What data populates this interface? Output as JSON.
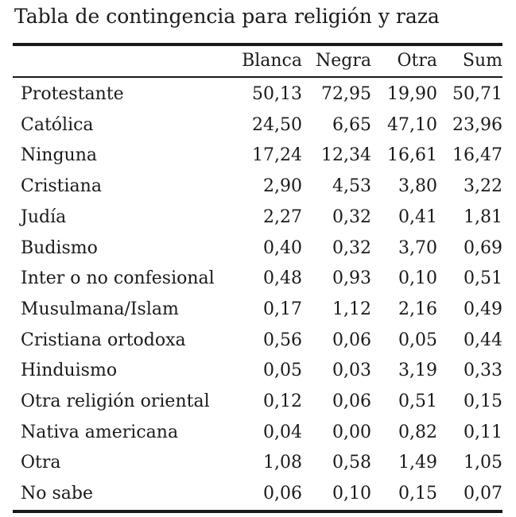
{
  "caption": "Tabla de contingencia para religión y raza",
  "columns": [
    "Blanca",
    "Negra",
    "Otra",
    "Sum"
  ],
  "rows": [
    {
      "label": "Protestante",
      "values": [
        "50,13",
        "72,95",
        "19,90",
        "50,71"
      ]
    },
    {
      "label": "Católica",
      "values": [
        "24,50",
        "6,65",
        "47,10",
        "23,96"
      ]
    },
    {
      "label": "Ninguna",
      "values": [
        "17,24",
        "12,34",
        "16,61",
        "16,47"
      ]
    },
    {
      "label": "Cristiana",
      "values": [
        "2,90",
        "4,53",
        "3,80",
        "3,22"
      ]
    },
    {
      "label": "Judía",
      "values": [
        "2,27",
        "0,32",
        "0,41",
        "1,81"
      ]
    },
    {
      "label": "Budismo",
      "values": [
        "0,40",
        "0,32",
        "3,70",
        "0,69"
      ]
    },
    {
      "label": "Inter o no confesional",
      "values": [
        "0,48",
        "0,93",
        "0,10",
        "0,51"
      ]
    },
    {
      "label": "Musulmana/Islam",
      "values": [
        "0,17",
        "1,12",
        "2,16",
        "0,49"
      ]
    },
    {
      "label": "Cristiana ortodoxa",
      "values": [
        "0,56",
        "0,06",
        "0,05",
        "0,44"
      ]
    },
    {
      "label": "Hinduismo",
      "values": [
        "0,05",
        "0,03",
        "3,19",
        "0,33"
      ]
    },
    {
      "label": "Otra religión oriental",
      "values": [
        "0,12",
        "0,06",
        "0,51",
        "0,15"
      ]
    },
    {
      "label": "Nativa americana",
      "values": [
        "0,04",
        "0,00",
        "0,82",
        "0,11"
      ]
    },
    {
      "label": "Otra",
      "values": [
        "1,08",
        "0,58",
        "1,49",
        "1,05"
      ]
    },
    {
      "label": "No sabe",
      "values": [
        "0,06",
        "0,10",
        "0,15",
        "0,07"
      ]
    }
  ]
}
